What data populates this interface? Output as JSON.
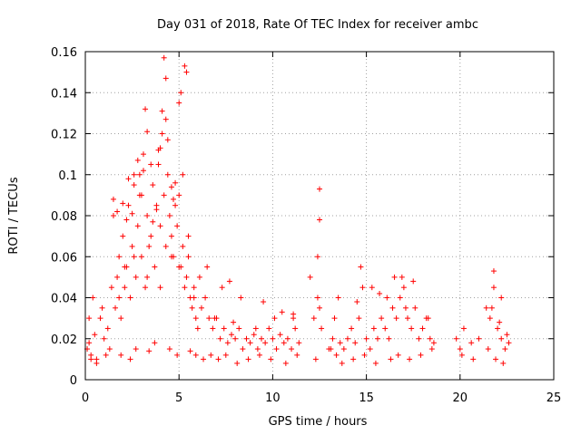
{
  "chart_data": {
    "type": "scatter",
    "title": "Day 031 of 2018, Rate Of TEC Index for receiver ambc",
    "xlabel": "GPS time / hours",
    "ylabel": "ROTI / TECUs",
    "xlim": [
      0,
      25
    ],
    "ylim": [
      0,
      0.16
    ],
    "xticks": [
      0,
      5,
      10,
      15,
      20,
      25
    ],
    "xtick_labels": [
      "0",
      "5",
      "10",
      "15",
      "20",
      "25"
    ],
    "yticks": [
      0,
      0.02,
      0.04,
      0.06,
      0.08,
      0.1,
      0.12,
      0.14,
      0.16
    ],
    "ytick_labels": [
      "0",
      "0.02",
      "0.04",
      "0.06",
      "0.08",
      "0.1",
      "0.12",
      "0.14",
      "0.16"
    ],
    "grid": true,
    "marker": "plus",
    "color": "#ff0000",
    "series": [
      {
        "x": [
          0.1,
          0.2,
          0.3,
          0.4,
          0.5,
          0.6,
          0.8,
          1.0,
          1.2,
          1.4,
          1.5,
          1.6,
          1.7,
          1.8,
          1.9,
          2.0,
          2.1,
          2.2,
          2.3,
          2.4,
          2.5,
          2.6,
          2.7,
          2.8,
          2.9,
          3.0,
          3.1,
          3.2,
          3.3,
          3.4,
          3.5,
          3.6,
          3.7,
          3.8,
          3.9,
          4.0,
          4.1,
          4.2,
          4.3,
          4.4,
          4.5,
          4.6,
          4.7,
          4.8,
          4.9,
          5.0,
          5.1,
          5.2,
          5.3,
          5.4,
          5.5,
          5.6,
          5.7,
          5.8,
          5.9,
          6.0,
          6.2,
          6.4,
          6.6,
          6.8,
          7.0,
          7.2,
          7.4,
          7.6,
          7.8,
          8.0,
          8.2,
          8.4,
          8.6,
          8.8,
          9.0,
          9.2,
          9.4,
          9.6,
          9.8,
          10.0,
          10.2,
          10.4,
          10.6,
          10.8,
          11.0,
          11.2,
          11.4,
          12.0,
          12.2,
          12.4,
          12.5,
          12.6,
          13.0,
          13.2,
          13.4,
          13.6,
          13.8,
          14.0,
          14.2,
          14.4,
          14.6,
          14.8,
          15.0,
          15.2,
          15.4,
          15.6,
          15.8,
          16.0,
          16.2,
          16.4,
          16.6,
          16.8,
          17.0,
          17.2,
          17.4,
          17.6,
          17.8,
          18.0,
          18.2,
          18.4,
          18.6,
          19.8,
          20.0,
          20.2,
          20.6,
          21.0,
          21.4,
          21.6,
          21.8,
          22.0,
          22.2,
          22.4,
          22.6,
          4.2,
          4.3,
          5.1,
          5.0,
          5.3,
          5.4,
          4.1,
          4.3,
          3.2,
          3.3,
          4.0,
          4.4,
          2.8,
          3.5,
          3.9,
          2.3,
          2.6,
          2.9,
          3.1,
          4.6,
          4.8,
          5.2,
          1.5,
          1.7,
          2.0,
          2.2,
          2.5,
          3.0,
          3.6,
          3.8,
          4.7,
          5.5,
          6.1,
          6.5,
          7.3,
          7.7,
          8.3,
          9.5,
          10.5,
          11.1,
          12.5,
          12.5,
          12.4,
          13.5,
          14.7,
          15.3,
          16.1,
          16.9,
          17.5,
          21.8,
          22.2,
          0.3,
          0.6,
          1.1,
          1.3,
          1.9,
          2.4,
          2.7,
          3.4,
          3.7,
          4.5,
          4.9,
          5.6,
          5.9,
          6.3,
          6.7,
          7.1,
          7.5,
          8.1,
          8.7,
          9.3,
          9.9,
          10.7,
          11.3,
          12.3,
          13.1,
          13.7,
          14.3,
          14.9,
          15.5,
          16.3,
          16.7,
          17.3,
          17.9,
          18.5,
          20.1,
          20.7,
          21.5,
          21.9,
          22.3,
          0.2,
          0.9,
          1.8,
          2.1,
          2.6,
          3.3,
          4.0,
          4.6,
          5.0,
          5.8,
          6.9,
          7.9,
          9.1,
          10.1,
          11.1,
          13.3,
          14.5,
          15.7,
          16.5,
          17.1,
          18.3,
          21.7,
          22.1,
          22.5
        ],
        "y": [
          0.015,
          0.018,
          0.012,
          0.04,
          0.022,
          0.01,
          0.03,
          0.02,
          0.025,
          0.045,
          0.08,
          0.035,
          0.05,
          0.06,
          0.03,
          0.07,
          0.045,
          0.055,
          0.085,
          0.04,
          0.065,
          0.1,
          0.05,
          0.075,
          0.09,
          0.06,
          0.11,
          0.045,
          0.08,
          0.065,
          0.07,
          0.095,
          0.055,
          0.085,
          0.105,
          0.075,
          0.12,
          0.09,
          0.065,
          0.1,
          0.08,
          0.07,
          0.06,
          0.085,
          0.075,
          0.09,
          0.055,
          0.065,
          0.045,
          0.05,
          0.06,
          0.04,
          0.035,
          0.045,
          0.03,
          0.025,
          0.035,
          0.04,
          0.03,
          0.025,
          0.03,
          0.02,
          0.025,
          0.018,
          0.022,
          0.02,
          0.025,
          0.015,
          0.02,
          0.018,
          0.022,
          0.015,
          0.02,
          0.018,
          0.025,
          0.02,
          0.015,
          0.022,
          0.018,
          0.02,
          0.015,
          0.025,
          0.018,
          0.05,
          0.03,
          0.04,
          0.035,
          0.025,
          0.015,
          0.02,
          0.012,
          0.018,
          0.015,
          0.02,
          0.025,
          0.018,
          0.03,
          0.045,
          0.02,
          0.015,
          0.025,
          0.02,
          0.03,
          0.025,
          0.02,
          0.035,
          0.03,
          0.04,
          0.045,
          0.03,
          0.025,
          0.035,
          0.02,
          0.025,
          0.03,
          0.02,
          0.018,
          0.02,
          0.015,
          0.025,
          0.018,
          0.02,
          0.035,
          0.03,
          0.045,
          0.025,
          0.02,
          0.015,
          0.018,
          0.157,
          0.147,
          0.14,
          0.135,
          0.153,
          0.15,
          0.131,
          0.127,
          0.132,
          0.121,
          0.113,
          0.117,
          0.107,
          0.105,
          0.112,
          0.098,
          0.095,
          0.1,
          0.102,
          0.094,
          0.096,
          0.1,
          0.088,
          0.082,
          0.086,
          0.078,
          0.081,
          0.09,
          0.077,
          0.083,
          0.088,
          0.07,
          0.05,
          0.055,
          0.045,
          0.048,
          0.04,
          0.038,
          0.033,
          0.03,
          0.093,
          0.078,
          0.06,
          0.04,
          0.055,
          0.045,
          0.04,
          0.05,
          0.048,
          0.053,
          0.04,
          0.01,
          0.008,
          0.012,
          0.015,
          0.012,
          0.01,
          0.015,
          0.014,
          0.018,
          0.015,
          0.012,
          0.014,
          0.012,
          0.01,
          0.012,
          0.01,
          0.012,
          0.008,
          0.01,
          0.012,
          0.01,
          0.008,
          0.012,
          0.01,
          0.015,
          0.008,
          0.01,
          0.012,
          0.008,
          0.01,
          0.012,
          0.01,
          0.012,
          0.015,
          0.012,
          0.01,
          0.015,
          0.01,
          0.008,
          0.03,
          0.035,
          0.04,
          0.055,
          0.06,
          0.05,
          0.045,
          0.06,
          0.055,
          0.04,
          0.03,
          0.028,
          0.025,
          0.03,
          0.032,
          0.03,
          0.038,
          0.042,
          0.05,
          0.035,
          0.03,
          0.035,
          0.028,
          0.022
        ]
      }
    ]
  }
}
